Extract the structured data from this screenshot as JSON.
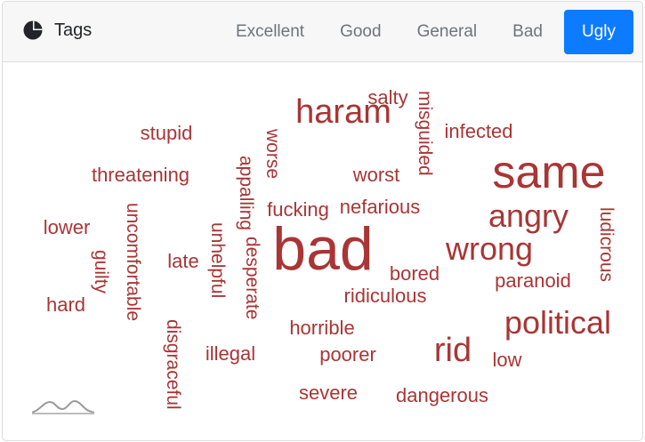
{
  "header": {
    "title": "Tags",
    "icon": "pie-chart-icon",
    "tabs": [
      {
        "label": "Excellent",
        "active": false
      },
      {
        "label": "Good",
        "active": false
      },
      {
        "label": "General",
        "active": false
      },
      {
        "label": "Bad",
        "active": false
      },
      {
        "label": "Ugly",
        "active": true
      }
    ]
  },
  "colors": {
    "word": "#a93535",
    "accent": "#0d7bff",
    "tab_text": "#6c757d",
    "header_bg": "#f7f7f7"
  },
  "cloud": {
    "words": [
      "haram",
      "salty",
      "misguided",
      "infected",
      "stupid",
      "worse",
      "threatening",
      "appalling",
      "worst",
      "same",
      "fucking",
      "nefarious",
      "uncomfortable",
      "angry",
      "lower",
      "bad",
      "unhelpful",
      "desperate",
      "ludicrous",
      "late",
      "guilty",
      "wrong",
      "bored",
      "paranoid",
      "ridiculous",
      "hard",
      "political",
      "horrible",
      "disgraceful",
      "illegal",
      "poorer",
      "rid",
      "low",
      "severe",
      "dangerous"
    ]
  },
  "footer_logo": "wave-logo-icon"
}
